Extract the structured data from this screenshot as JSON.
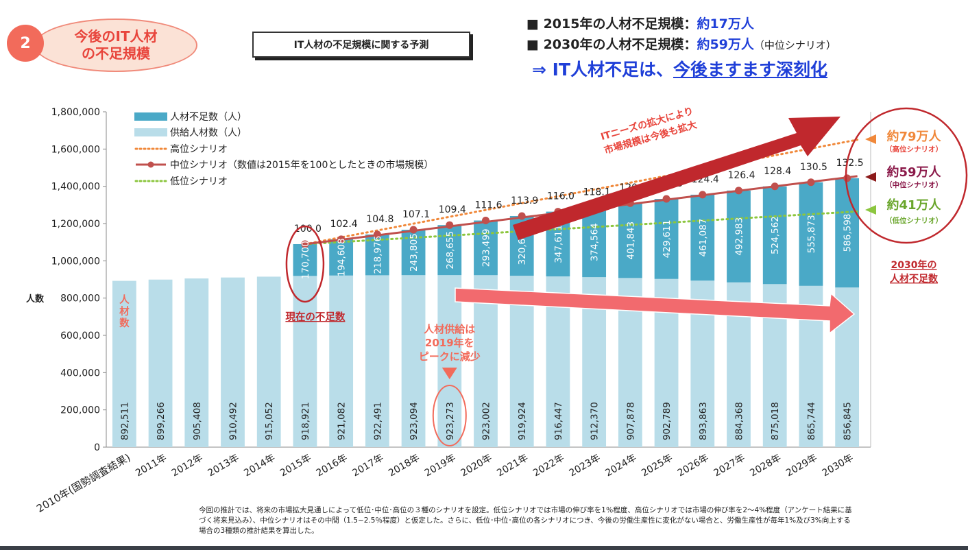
{
  "badge": {
    "number": "2",
    "line1": "今後のIT人材",
    "line2": "の不足規模"
  },
  "chart_box_title": "IT人材の不足規模に関する予測",
  "headline": {
    "line1_prefix": "■ 2015年の人材不足規模：",
    "line1_value": "約17万人",
    "line2_prefix": "■ 2030年の人材不足規模：",
    "line2_value": "約59万人",
    "line2_note": "（中位シナリオ）",
    "line3_prefix": "⇒ IT人材不足は、",
    "line3_underlined": "今後ますます深刻化"
  },
  "legend": {
    "shortage": "人材不足数（人）",
    "supply": "供給人材数（人）",
    "high": "高位シナリオ",
    "mid": "中位シナリオ（数値は2015年を100としたときの市場規模）",
    "low": "低位シナリオ"
  },
  "annotations": {
    "growth_1": "ITニーズの拡大により",
    "growth_2": "市場規模は今後も拡大",
    "current_shortage": "現在の不足数",
    "peak_1": "人材供給は",
    "peak_2": "2019年を",
    "peak_3": "ピークに減少",
    "supply_vertical": [
      "人",
      "材",
      "数"
    ],
    "high_value": "約79万人",
    "high_note": "（高位シナリオ）",
    "mid_value": "約59万人",
    "mid_note": "（中位シナリオ）",
    "low_value": "約41万人",
    "low_note": "（低位シナリオ）",
    "shortage2030_1": "2030年の",
    "shortage2030_2": "人材不足数"
  },
  "footnote": "今回の推計では、将来の市場拡大見通しによって低位･中位･高位の３種のシナリオを設定。低位シナリオでは市場の伸び率を1％程度、高位シナリオでは市場の伸び率を2～4%程度（アンケート結果に基づく将来見込み）、中位シナリオはその中間（1.5~2.5％程度）と仮定した。さらに、低位･中位･高位の各シナリオにつき、今後の労働生産性に変化がない場合と、労働生産性が毎年1%及び3%向上する場合の3種類の推計結果を算出した。",
  "colors": {
    "shortage": "#4aa9c7",
    "supply": "#b9dde9",
    "high": "#f0883a",
    "mid": "#c0504d",
    "low": "#8cc63f",
    "accent_red": "#c0282d",
    "pink_arrow": "#f26a6e",
    "blue": "#1f3fd8"
  },
  "chart_data": {
    "type": "bar",
    "stacked": true,
    "ylabel": "人数",
    "ylim": [
      0,
      1800000
    ],
    "yticks": [
      0,
      200000,
      400000,
      600000,
      800000,
      1000000,
      1200000,
      1400000,
      1600000,
      1800000
    ],
    "ytick_labels": [
      "0",
      "200,000",
      "400,000",
      "600,000",
      "800,000",
      "1,000,000",
      "1,200,000",
      "1,400,000",
      "1,600,000",
      "1,800,000"
    ],
    "categories": [
      "2010年(国勢調査結果)",
      "2011年",
      "2012年",
      "2013年",
      "2014年",
      "2015年",
      "2016年",
      "2017年",
      "2018年",
      "2019年",
      "2020年",
      "2021年",
      "2022年",
      "2023年",
      "2024年",
      "2025年",
      "2026年",
      "2027年",
      "2028年",
      "2029年",
      "2030年"
    ],
    "series": [
      {
        "name": "供給人材数（人）",
        "values": [
          892511,
          899266,
          905408,
          910492,
          915052,
          918921,
          921082,
          922491,
          923094,
          923273,
          923002,
          919924,
          916447,
          912370,
          907878,
          902789,
          893863,
          884368,
          875018,
          865744,
          856845
        ],
        "labels": [
          "892,511",
          "899,266",
          "905,408",
          "910,492",
          "915,052",
          "918,921",
          "921,082",
          "922,491",
          "923,094",
          "923,273",
          "923,002",
          "919,924",
          "916,447",
          "912,370",
          "907,878",
          "902,789",
          "893,863",
          "884,368",
          "875,018",
          "865,744",
          "856,845"
        ]
      },
      {
        "name": "人材不足数（人）",
        "values": [
          null,
          null,
          null,
          null,
          null,
          170700,
          194608,
          218976,
          243805,
          268655,
          293499,
          320638,
          347611,
          374564,
          401843,
          429611,
          461087,
          492983,
          524562,
          555873,
          586598
        ],
        "labels": [
          "",
          "",
          "",
          "",
          "",
          "170,700",
          "194,608",
          "218,976",
          "243,805",
          "268,655",
          "293,499",
          "320,638",
          "347,611",
          "374,564",
          "401,843",
          "429,611",
          "461,087",
          "492,983",
          "524,562",
          "555,873",
          "586,598"
        ]
      }
    ],
    "mid_index": [
      null,
      null,
      null,
      null,
      null,
      100.0,
      102.4,
      104.8,
      107.1,
      109.4,
      111.6,
      113.9,
      116.0,
      118.1,
      120.2,
      122.3,
      124.4,
      126.4,
      128.4,
      130.5,
      132.5
    ],
    "mid_index_labels": [
      "",
      "",
      "",
      "",
      "",
      "100.0",
      "102.4",
      "104.8",
      "107.1",
      "109.4",
      "111.6",
      "113.9",
      "116.0",
      "118.1",
      "120.2",
      "122.3",
      "124.4",
      "126.4",
      "128.4",
      "130.5",
      "132.5"
    ],
    "high_scenario_2030": 1650000,
    "low_scenario_2030": 1265000,
    "legend_position": "top-left"
  }
}
